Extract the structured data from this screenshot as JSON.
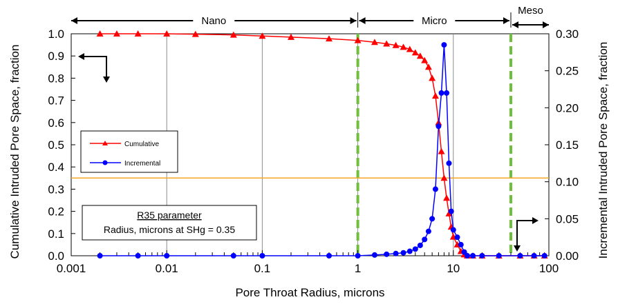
{
  "chart_data": {
    "type": "scatter",
    "xlabel": "Pore Throat Radius, microns",
    "ylabel_left": "Cumulative Intruded Pore Space, fraction",
    "ylabel_right": "Incremental Intruded Pore Space, fraction",
    "x_scale": "log",
    "xlim": [
      0.001,
      100
    ],
    "ylim_left": [
      0,
      1
    ],
    "ylim_right": [
      0,
      0.3
    ],
    "x_ticks": [
      "0.001",
      "0.01",
      "0.1",
      "1",
      "10",
      "100"
    ],
    "y_ticks_left": [
      "0.0",
      "0.1",
      "0.2",
      "0.3",
      "0.4",
      "0.5",
      "0.6",
      "0.7",
      "0.8",
      "0.9",
      "1.0"
    ],
    "y_ticks_right": [
      "0.00",
      "0.05",
      "0.10",
      "0.15",
      "0.20",
      "0.25",
      "0.30"
    ],
    "grid": "vertical lines at decades",
    "regions": [
      {
        "label": "Nano",
        "from": 0.001,
        "to": 1
      },
      {
        "label": "Micro",
        "from": 1,
        "to": 40
      },
      {
        "label": "Meso",
        "from": 40,
        "to": 100
      }
    ],
    "boundaries": [
      1,
      40
    ],
    "r35_line": 0.35,
    "r35_box": {
      "title": "R35 parameter",
      "text": "Radius, microns at SHg = 0.35"
    },
    "legend": {
      "position": "middle-left"
    },
    "series": [
      {
        "name": "Cumulative",
        "axis": "left",
        "color": "#ff0000",
        "marker": "triangle",
        "points": [
          [
            0.002,
            1.0
          ],
          [
            0.003,
            1.0
          ],
          [
            0.005,
            1.0
          ],
          [
            0.01,
            1.0
          ],
          [
            0.02,
            0.998
          ],
          [
            0.05,
            0.995
          ],
          [
            0.1,
            0.99
          ],
          [
            0.2,
            0.985
          ],
          [
            0.5,
            0.978
          ],
          [
            1.0,
            0.97
          ],
          [
            1.5,
            0.962
          ],
          [
            2.0,
            0.955
          ],
          [
            2.5,
            0.948
          ],
          [
            3.0,
            0.94
          ],
          [
            3.5,
            0.93
          ],
          [
            4.0,
            0.915
          ],
          [
            4.5,
            0.9
          ],
          [
            5.0,
            0.88
          ],
          [
            5.5,
            0.85
          ],
          [
            6.0,
            0.8
          ],
          [
            6.5,
            0.72
          ],
          [
            7.0,
            0.6
          ],
          [
            7.5,
            0.47
          ],
          [
            8.0,
            0.35
          ],
          [
            8.5,
            0.26
          ],
          [
            9.0,
            0.19
          ],
          [
            9.5,
            0.13
          ],
          [
            10.0,
            0.085
          ],
          [
            11.0,
            0.05
          ],
          [
            12.0,
            0.02
          ],
          [
            13.0,
            0.005
          ],
          [
            14.0,
            0.0
          ],
          [
            16.0,
            0.0
          ],
          [
            20.0,
            0.0
          ],
          [
            30.0,
            0.0
          ],
          [
            50.0,
            0.0
          ],
          [
            70.0,
            0.0
          ],
          [
            90.0,
            0.0
          ]
        ]
      },
      {
        "name": "Incremental",
        "axis": "right",
        "color": "#0000ff",
        "marker": "circle",
        "points": [
          [
            0.002,
            0.0
          ],
          [
            0.005,
            0.0
          ],
          [
            0.01,
            0.0
          ],
          [
            0.05,
            0.0
          ],
          [
            0.1,
            0.0
          ],
          [
            0.5,
            0.0
          ],
          [
            1.0,
            0.0
          ],
          [
            1.5,
            0.001
          ],
          [
            2.0,
            0.002
          ],
          [
            2.5,
            0.003
          ],
          [
            3.0,
            0.004
          ],
          [
            3.5,
            0.006
          ],
          [
            4.0,
            0.009
          ],
          [
            4.5,
            0.014
          ],
          [
            5.0,
            0.022
          ],
          [
            5.5,
            0.033
          ],
          [
            6.0,
            0.05
          ],
          [
            6.5,
            0.09
          ],
          [
            7.0,
            0.175
          ],
          [
            7.5,
            0.22
          ],
          [
            8.0,
            0.285
          ],
          [
            8.5,
            0.22
          ],
          [
            9.0,
            0.125
          ],
          [
            9.5,
            0.06
          ],
          [
            10.0,
            0.035
          ],
          [
            11.0,
            0.025
          ],
          [
            12.0,
            0.015
          ],
          [
            13.0,
            0.005
          ],
          [
            14.0,
            0.0
          ],
          [
            16.0,
            0.0
          ],
          [
            20.0,
            0.0
          ],
          [
            30.0,
            0.0
          ],
          [
            50.0,
            0.0
          ],
          [
            70.0,
            0.0
          ],
          [
            90.0,
            0.0
          ]
        ]
      }
    ]
  }
}
